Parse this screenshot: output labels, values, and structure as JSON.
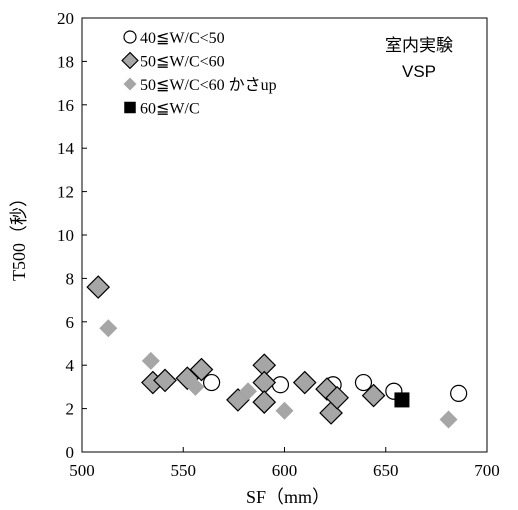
{
  "chart_data": {
    "type": "scatter",
    "title": "",
    "xlabel": "SF（mm）",
    "ylabel": "T500（秒）",
    "xlim": [
      500,
      700
    ],
    "ylim": [
      0,
      20
    ],
    "xticks": [
      500,
      550,
      600,
      650,
      700
    ],
    "yticks": [
      0,
      2,
      4,
      6,
      8,
      10,
      12,
      14,
      16,
      18,
      20
    ],
    "grid": false,
    "legend_position": "top-left",
    "annotations": [
      "室内実験",
      "VSP"
    ],
    "series": [
      {
        "name": "40≦W/C<50",
        "marker": "circle-open",
        "color": "#000000",
        "fill": "#ffffff",
        "points": [
          [
            564,
            3.2
          ],
          [
            598,
            3.1
          ],
          [
            624,
            3.1
          ],
          [
            639,
            3.2
          ],
          [
            654,
            2.8
          ],
          [
            686,
            2.7
          ]
        ]
      },
      {
        "name": "50≦W/C<60",
        "marker": "diamond",
        "color": "#000000",
        "fill": "#a6a6a6",
        "points": [
          [
            508,
            7.6
          ],
          [
            535,
            3.2
          ],
          [
            541,
            3.3
          ],
          [
            552,
            3.4
          ],
          [
            559,
            3.8
          ],
          [
            577,
            2.4
          ],
          [
            590,
            4.0
          ],
          [
            590,
            3.2
          ],
          [
            590,
            2.3
          ],
          [
            610,
            3.2
          ],
          [
            621,
            2.9
          ],
          [
            623,
            1.8
          ],
          [
            626,
            2.5
          ],
          [
            644,
            2.6
          ]
        ]
      },
      {
        "name": "50≦W/C<60 かさup",
        "marker": "diamond-small",
        "color": "#a6a6a6",
        "fill": "#a6a6a6",
        "points": [
          [
            513,
            5.7
          ],
          [
            534,
            4.2
          ],
          [
            556,
            3.0
          ],
          [
            582,
            2.8
          ],
          [
            600,
            1.9
          ],
          [
            681,
            1.5
          ]
        ]
      },
      {
        "name": "60≦W/C",
        "marker": "square",
        "color": "#000000",
        "fill": "#000000",
        "points": [
          [
            658,
            2.4
          ]
        ]
      }
    ]
  }
}
